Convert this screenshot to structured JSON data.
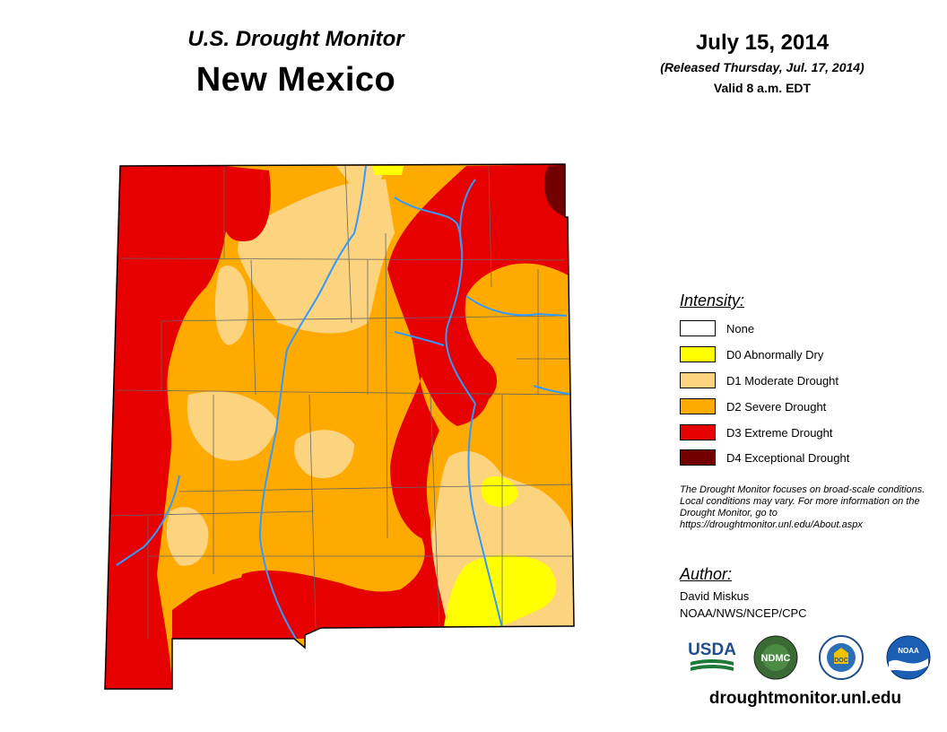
{
  "header": {
    "subtitle": "U.S. Drought Monitor",
    "state": "New Mexico",
    "date": "July 15, 2014",
    "released": "(Released Thursday, Jul. 17, 2014)",
    "valid": "Valid 8 a.m. EDT"
  },
  "legend": {
    "title": "Intensity:",
    "items": [
      {
        "label": "None",
        "color": "#ffffff"
      },
      {
        "label": "D0 Abnormally Dry",
        "color": "#ffff00"
      },
      {
        "label": "D1 Moderate Drought",
        "color": "#fcd37f"
      },
      {
        "label": "D2 Severe Drought",
        "color": "#ffaa00"
      },
      {
        "label": "D3 Extreme Drought",
        "color": "#e60000"
      },
      {
        "label": "D4 Exceptional Drought",
        "color": "#730000"
      }
    ]
  },
  "note": "The Drought Monitor focuses on broad-scale conditions. Local conditions may vary. For more information on the Drought Monitor, go to https://droughtmonitor.unl.edu/About.aspx",
  "author": {
    "title": "Author:",
    "name": "David Miskus",
    "org": "NOAA/NWS/NCEP/CPC"
  },
  "logos": {
    "usda": "USDA",
    "ndmc": "NDMC",
    "doc": "DOC",
    "noaa": "NOAA"
  },
  "website": "droughtmonitor.unl.edu",
  "colors": {
    "river": "#3399ff",
    "county_line": "#666666"
  }
}
